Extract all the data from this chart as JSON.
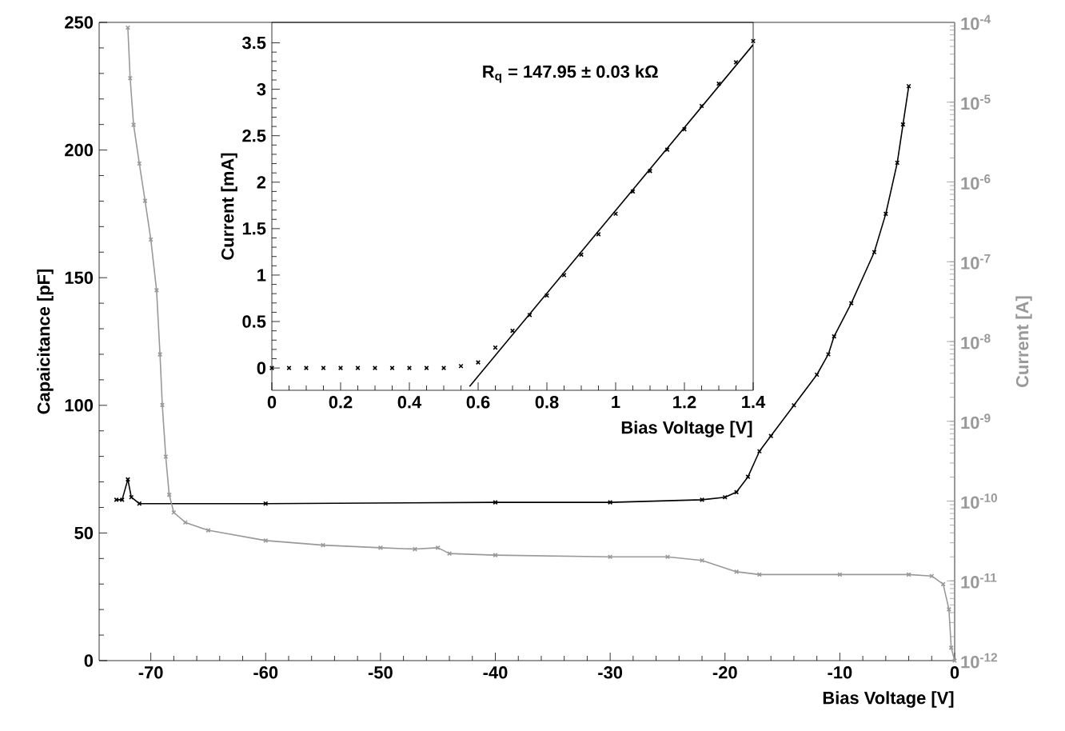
{
  "chart_data": [
    {
      "type": "line",
      "xlabel": "Bias Voltage [V]",
      "ylabel": "Capaicitance [pF]",
      "y2label": "Current [A]",
      "marker": "cross",
      "log": "y2",
      "xlim": [
        -74.5,
        0
      ],
      "xticks": [
        -70,
        -60,
        -50,
        -40,
        -30,
        -20,
        -10,
        0
      ],
      "ylim": [
        0,
        250
      ],
      "yticks": [
        0,
        50,
        100,
        150,
        200,
        250
      ],
      "y2lim": [
        1e-12,
        0.0001
      ],
      "y2ticks": [
        {
          "value": 1e-12,
          "label": "10$^{-12}$"
        },
        {
          "value": 1e-11,
          "label": "10$^{-11}$"
        },
        {
          "value": 1e-10,
          "label": "10$^{-10}$"
        },
        {
          "value": 1e-09,
          "label": "10$^{-9}$"
        },
        {
          "value": 1e-08,
          "label": "10$^{-8}$"
        },
        {
          "value": 1e-07,
          "label": "10$^{-7}$"
        },
        {
          "value": 1e-06,
          "label": "10$^{-6}$"
        },
        {
          "value": 1e-05,
          "label": "10$^{-5}$"
        },
        {
          "value": 0.0001,
          "label": "10$^{-4}$"
        }
      ],
      "series": [
        {
          "color": "#000000",
          "x": [
            -73,
            -72.5,
            -72,
            -71.7,
            -71,
            -60,
            -40,
            -30,
            -22,
            -20,
            -19,
            -18,
            -17,
            -16,
            -14,
            -12,
            -11,
            -10.5,
            -9,
            -7,
            -6,
            -5,
            -4.5,
            -4
          ],
          "values": [
            63,
            63,
            71,
            64,
            61.5,
            61.5,
            62,
            62,
            63,
            64,
            66,
            72,
            82,
            88,
            100,
            112,
            120,
            127,
            140,
            160,
            175,
            195,
            210,
            225
          ]
        },
        {
          "color": "#999999",
          "axis": "y2",
          "x": [
            -72,
            -71.8,
            -71.5,
            -71,
            -70.5,
            -70,
            -69.5,
            -69.2,
            -69,
            -68.7,
            -68.4,
            -68,
            -67,
            -65,
            -60,
            -55,
            -50,
            -47,
            -45,
            -44,
            -40,
            -30,
            -25,
            -22,
            -19,
            -17,
            -10,
            -4,
            -2,
            -1,
            -0.5,
            -0.3,
            0
          ],
          "values": [
            8.6e-05,
            2e-05,
            5.2e-06,
            1.7e-06,
            5.8e-07,
            1.9e-07,
            4.4e-08,
            6.9e-09,
            1.6e-09,
            3.6e-10,
            1.2e-10,
            7.2e-11,
            5.4e-11,
            4.3e-11,
            3.2e-11,
            2.8e-11,
            2.6e-11,
            2.5e-11,
            2.6e-11,
            2.2e-11,
            2.1e-11,
            2e-11,
            2e-11,
            1.8e-11,
            1.3e-11,
            1.2e-11,
            1.2e-11,
            1.2e-11,
            1.15e-11,
            9.1e-12,
            4.4e-12,
            1.45e-12,
            1e-12
          ]
        }
      ]
    },
    {
      "type": "scatter",
      "xlabel": "Bias Voltage [V]",
      "ylabel": "Current [mA]",
      "marker": "cross",
      "annotations": [
        "R$_{q}$ = 147.95 ± 0.03 kΩ"
      ],
      "xlim": [
        0,
        1.4
      ],
      "xticks": [
        0,
        0.2,
        0.4,
        0.6,
        0.8,
        1,
        1.2,
        1.4
      ],
      "ylim": [
        -0.24,
        3.72
      ],
      "yticks": [
        0,
        0.5,
        1,
        1.5,
        2,
        2.5,
        3,
        3.5
      ],
      "series": [
        {
          "color": "#000000",
          "x": [
            0,
            0.05,
            0.1,
            0.15,
            0.2,
            0.25,
            0.3,
            0.35,
            0.4,
            0.45,
            0.5,
            0.55,
            0.6,
            0.65,
            0.7,
            0.75,
            0.8,
            0.85,
            0.9,
            0.95,
            1.0,
            1.05,
            1.1,
            1.15,
            1.2,
            1.25,
            1.3,
            1.35,
            1.4
          ],
          "values": [
            0,
            0,
            0,
            0,
            0,
            0,
            0,
            0,
            0,
            0,
            0,
            0.02,
            0.06,
            0.22,
            0.4,
            0.57,
            0.78,
            1.0,
            1.22,
            1.44,
            1.66,
            1.9,
            2.12,
            2.35,
            2.57,
            2.82,
            3.06,
            3.29,
            3.52
          ]
        },
        {
          "color": "#000000",
          "type": "line",
          "marker": "none",
          "x": [
            0.575,
            1.4
          ],
          "values": [
            -0.2,
            3.48
          ]
        }
      ]
    }
  ]
}
